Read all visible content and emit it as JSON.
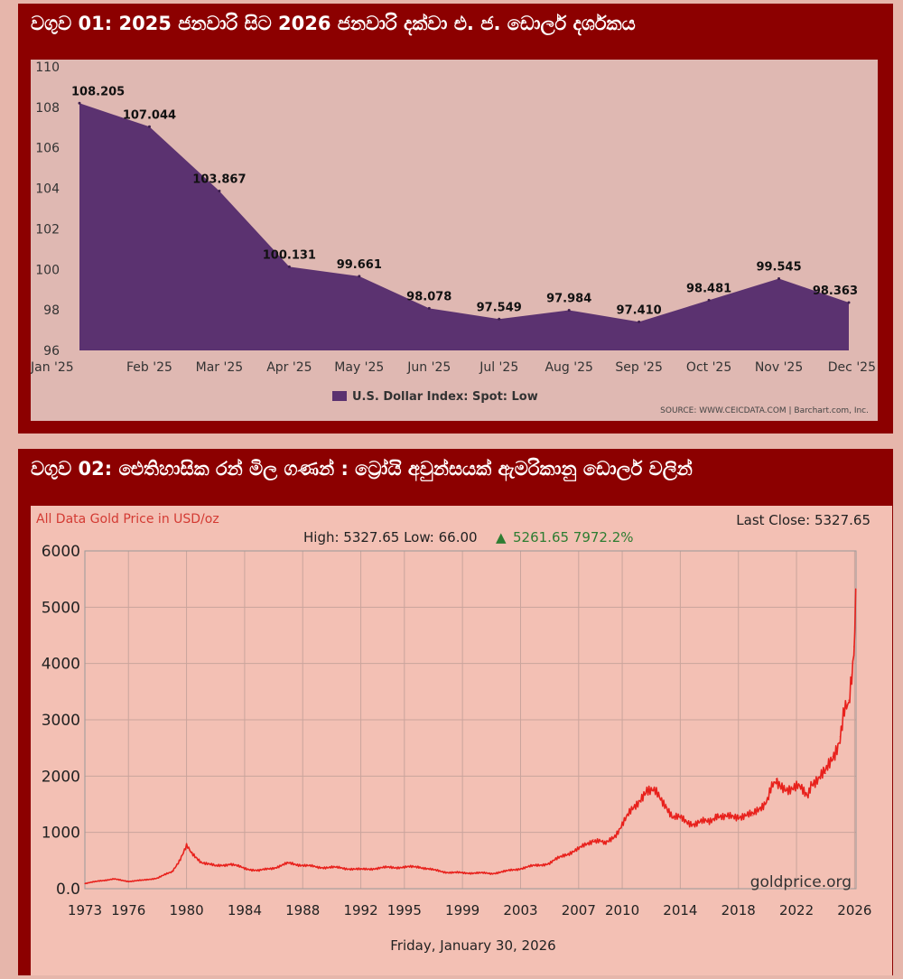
{
  "chart1": {
    "panel_title": "වගුව 01: 2025 ජනවාරි සිට 2026 ජනවාරි දක්වා එ. ජ. ඩොලර් දර්ශකය",
    "legend_label": "U.S. Dollar Index: Spot: Low",
    "source_label": "SOURCE: WWW.CEICDATA.COM | Barchart.com, Inc.",
    "colors": {
      "area": "#5b3270",
      "plot_bg": "#e0b8b3",
      "text": "#222222"
    }
  },
  "chart2": {
    "panel_title": "වගුව 02: ඓතිහාසික රන් මිල ගණන් : ට්‍රෝයි අවුන්සයක් ඇමරිකානු ඩොලර් වලින්",
    "header_title": "All Data Gold Price in USD/oz",
    "last_close": "Last Close: 5327.65",
    "stats_prefix": "High: 5327.65 Low: 66.00",
    "change_arrow": "▲",
    "change_text": "5261.65 7972.2%",
    "watermark": "goldprice.org",
    "date_label": "Friday, January 30, 2026",
    "colors": {
      "line": "#e8211c",
      "bg": "#f3c0b4",
      "grid": "#c9a49c",
      "title_red": "#d33a33",
      "green": "#2e7d32"
    }
  },
  "chart_data": [
    {
      "type": "area",
      "title": "",
      "xlabel": "",
      "ylabel": "",
      "categories": [
        "Jan '25",
        "Feb '25",
        "Mar '25",
        "Apr '25",
        "May '25",
        "Jun '25",
        "Jul '25",
        "Aug '25",
        "Sep '25",
        "Oct '25",
        "Nov '25",
        "Dec '25"
      ],
      "values": [
        108.205,
        107.044,
        103.867,
        100.131,
        99.661,
        98.078,
        97.549,
        97.984,
        97.41,
        98.481,
        99.545,
        98.363
      ],
      "data_labels": [
        "108.205",
        "107.044",
        "103.867",
        "100.131",
        "99.661",
        "98.078",
        "97.549",
        "97.984",
        "97.410",
        "98.481",
        "99.545",
        "98.363"
      ],
      "series_name": "U.S. Dollar Index: Spot: Low",
      "ylim": [
        96,
        110
      ],
      "yticks": [
        96,
        98,
        100,
        102,
        104,
        106,
        108,
        110
      ],
      "grid": false,
      "legend": "bottom-center"
    },
    {
      "type": "line",
      "title": "All Data Gold Price in USD/oz",
      "xlabel": "Friday, January 30, 2026",
      "ylabel": "",
      "ylim": [
        0,
        6000
      ],
      "xlim": [
        1973,
        2026.1
      ],
      "yticks": [
        0,
        1000,
        2000,
        3000,
        4000,
        5000,
        6000
      ],
      "ytick_labels": [
        "0.0",
        "1000",
        "2000",
        "3000",
        "4000",
        "5000",
        "6000"
      ],
      "xticks": [
        1973,
        1976,
        1980,
        1984,
        1988,
        1992,
        1995,
        1999,
        2003,
        2007,
        2010,
        2014,
        2018,
        2022,
        2026
      ],
      "grid": true,
      "x": [
        1973.0,
        1974.0,
        1975.0,
        1976.0,
        1977.0,
        1978.0,
        1979.0,
        1979.5,
        1980.0,
        1980.3,
        1981.0,
        1982.0,
        1983.0,
        1984.0,
        1985.0,
        1986.0,
        1987.0,
        1988.0,
        1989.0,
        1990.0,
        1991.0,
        1992.0,
        1993.0,
        1994.0,
        1995.0,
        1996.0,
        1997.0,
        1998.0,
        1999.0,
        2000.0,
        2001.0,
        2002.0,
        2003.0,
        2004.0,
        2005.0,
        2006.0,
        2007.0,
        2008.0,
        2008.8,
        2009.5,
        2010.0,
        2011.0,
        2011.7,
        2012.5,
        2013.0,
        2013.5,
        2014.0,
        2015.0,
        2016.0,
        2016.5,
        2017.0,
        2018.0,
        2019.0,
        2019.5,
        2020.0,
        2020.6,
        2021.0,
        2022.0,
        2022.8,
        2023.0,
        2023.5,
        2024.0,
        2024.5,
        2025.0,
        2025.3,
        2025.6,
        2025.8,
        2025.95,
        2026.08
      ],
      "y": [
        90,
        140,
        170,
        130,
        150,
        190,
        300,
        500,
        750,
        650,
        480,
        400,
        440,
        360,
        320,
        370,
        450,
        420,
        380,
        380,
        360,
        340,
        360,
        380,
        380,
        390,
        330,
        290,
        280,
        280,
        270,
        310,
        360,
        410,
        450,
        600,
        700,
        870,
        800,
        950,
        1150,
        1500,
        1800,
        1650,
        1500,
        1250,
        1250,
        1150,
        1200,
        1320,
        1250,
        1300,
        1300,
        1450,
        1600,
        1950,
        1800,
        1800,
        1700,
        1900,
        1950,
        2050,
        2350,
        2700,
        3100,
        3350,
        3800,
        4300,
        5327
      ]
    }
  ]
}
